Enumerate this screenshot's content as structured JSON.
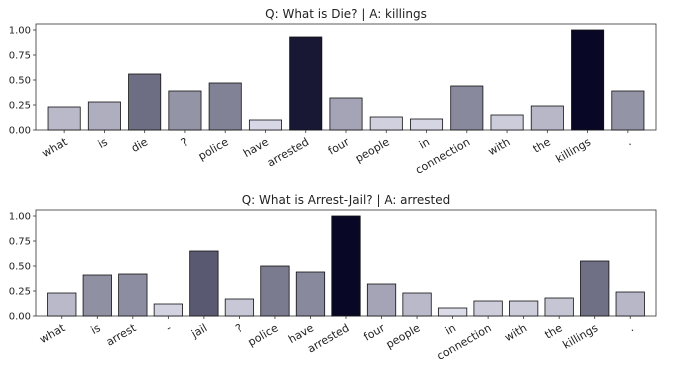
{
  "chart_data": [
    {
      "type": "bar",
      "title": "Q: What is Die? | A: killings",
      "categories": [
        "what",
        "is",
        "die",
        "?",
        "police",
        "have",
        "arrested",
        "four",
        "people",
        "in",
        "connection",
        "with",
        "the",
        "killings",
        "."
      ],
      "values": [
        0.23,
        0.28,
        0.56,
        0.39,
        0.47,
        0.1,
        0.93,
        0.32,
        0.13,
        0.11,
        0.44,
        0.15,
        0.24,
        1.0,
        0.39
      ],
      "ylim": [
        0,
        1.0
      ],
      "yticks": [
        "0.00",
        "0.25",
        "0.50",
        "0.75",
        "1.00"
      ],
      "grid": false,
      "color_scale": "grey intensity proportional to value"
    },
    {
      "type": "bar",
      "title": "Q: What is Arrest-Jail? | A: arrested",
      "categories": [
        "what",
        "is",
        "arrest",
        "-",
        "jail",
        "?",
        "police",
        "have",
        "arrested",
        "four",
        "people",
        "in",
        "connection",
        "with",
        "the",
        "killings",
        "."
      ],
      "values": [
        0.23,
        0.41,
        0.42,
        0.12,
        0.65,
        0.17,
        0.5,
        0.44,
        1.0,
        0.32,
        0.23,
        0.08,
        0.15,
        0.15,
        0.18,
        0.55,
        0.24
      ],
      "ylim": [
        0,
        1.0
      ],
      "yticks": [
        "0.00",
        "0.25",
        "0.50",
        "0.75",
        "1.00"
      ],
      "grid": false,
      "color_scale": "grey intensity proportional to value"
    }
  ]
}
